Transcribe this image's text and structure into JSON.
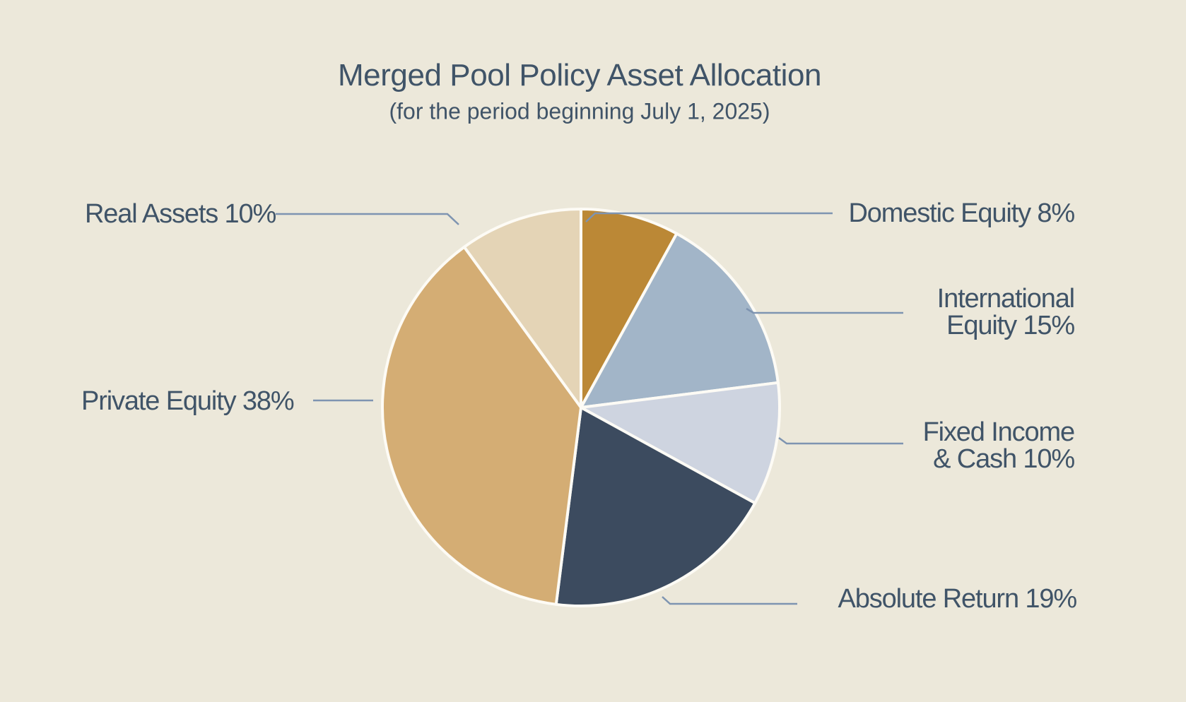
{
  "page": {
    "title": "Merged Pool Policy Asset Allocation",
    "subtitle": "(for the period beginning July 1, 2025)"
  },
  "chart_data": {
    "type": "pie",
    "title": "Merged Pool Policy Asset Allocation",
    "subtitle": "(for the period beginning July 1, 2025)",
    "unit": "percent",
    "start_angle_deg": 0,
    "direction": "clockwise",
    "grid": false,
    "legend_position": "outside-callout-labels",
    "slices": [
      {
        "label": "Domestic Equity",
        "value": 8,
        "color": "#BB8836",
        "callout": "Domestic Equity 8%"
      },
      {
        "label": "International Equity",
        "value": 15,
        "color": "#A2B5C8",
        "callout": "International\nEquity 15%"
      },
      {
        "label": "Fixed Income & Cash",
        "value": 10,
        "color": "#CED4E0",
        "callout": "Fixed Income\n& Cash 10%"
      },
      {
        "label": "Absolute Return",
        "value": 19,
        "color": "#3C4B5F",
        "callout": "Absolute Return 19%"
      },
      {
        "label": "Private Equity",
        "value": 38,
        "color": "#D4AD74",
        "callout": "Private Equity 38%"
      },
      {
        "label": "Real Assets",
        "value": 10,
        "color": "#E4D4B6",
        "callout": "Real Assets 10%"
      }
    ]
  },
  "colors": {
    "background": "#ECE8DA",
    "text": "#405468",
    "leader_line": "#7E94B1",
    "slice_border": "#FDFBF5"
  }
}
